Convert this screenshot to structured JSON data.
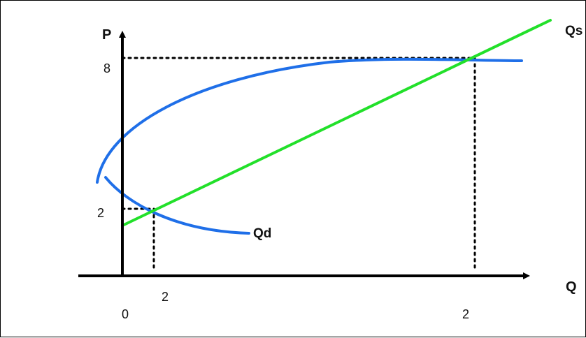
{
  "colors": {
    "axis": "#000000",
    "supply_line": "#22e02a",
    "demand_curve": "#1f6fe8",
    "guides": "#000000"
  },
  "axes": {
    "y_label": "P",
    "x_label": "Q"
  },
  "curves": {
    "supply_label": "Qs",
    "demand_label": "Qd"
  },
  "ticks": {
    "y_high": "8",
    "y_low": "2",
    "x_origin": "0",
    "x_low": "2",
    "x_high": "2"
  },
  "chart_data": {
    "type": "line",
    "xlabel": "Q",
    "ylabel": "P",
    "series": [
      {
        "name": "Qs"
      },
      {
        "name": "Qd"
      }
    ],
    "intersections": [
      {
        "Q": "2",
        "P": "2"
      },
      {
        "Q": "2",
        "P": "8"
      }
    ]
  }
}
